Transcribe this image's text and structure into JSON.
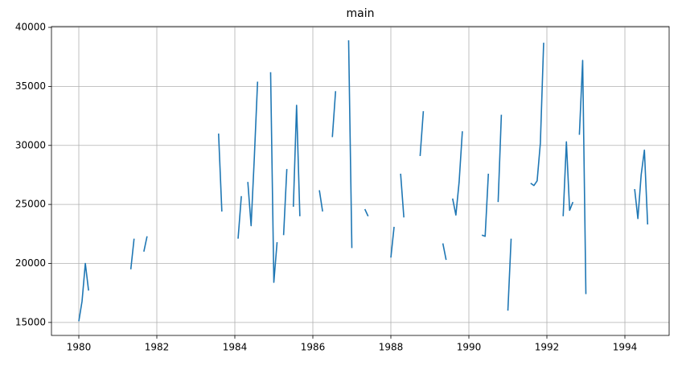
{
  "chart_data": {
    "type": "line",
    "title": "main",
    "x": [
      1980,
      1980.083,
      1980.167,
      1980.25,
      1980.333,
      1981.333,
      1981.417,
      1981.5,
      1981.667,
      1981.75,
      1981.833,
      1983.583,
      1983.667,
      1983.75,
      1984.083,
      1984.167,
      1984.25,
      1984.333,
      1984.417,
      1984.5,
      1984.583,
      1984.667,
      1984.917,
      1985,
      1985.083,
      1985.167,
      1985.25,
      1985.333,
      1985.417,
      1985.5,
      1985.583,
      1985.667,
      1985.75,
      1986.167,
      1986.25,
      1986.333,
      1986.5,
      1986.583,
      1986.667,
      1986.917,
      1987,
      1987.083,
      1987.333,
      1987.417,
      1987.5,
      1988,
      1988.083,
      1988.167,
      1988.25,
      1988.333,
      1988.417,
      1988.75,
      1988.833,
      1988.917,
      1989.333,
      1989.417,
      1989.5,
      1989.583,
      1989.667,
      1989.75,
      1989.833,
      1989.917,
      1990.333,
      1990.417,
      1990.5,
      1990.583,
      1990.75,
      1990.833,
      1990.917,
      1991,
      1991.083,
      1991.167,
      1991.583,
      1991.667,
      1991.75,
      1991.833,
      1991.917,
      1992,
      1992.417,
      1992.5,
      1992.583,
      1992.667,
      1992.75,
      1992.833,
      1992.917,
      1993,
      1993.083,
      1994.25,
      1994.333,
      1994.417,
      1994.5,
      1994.583
    ],
    "series": [
      {
        "color": "#1f77b4",
        "values": [
          15100,
          16800,
          20000,
          17700,
          null,
          19500,
          22100,
          null,
          21000,
          22300,
          null,
          31000,
          24400,
          null,
          22100,
          25700,
          null,
          26900,
          23200,
          29000,
          35400,
          null,
          36200,
          18400,
          21800,
          null,
          22400,
          28000,
          null,
          24800,
          33400,
          24000,
          null,
          26200,
          24400,
          null,
          30700,
          34600,
          null,
          38900,
          21300,
          null,
          24600,
          24000,
          null,
          20500,
          23100,
          null,
          27600,
          23900,
          null,
          29100,
          32900,
          null,
          21700,
          20300,
          null,
          25500,
          24100,
          26900,
          31200,
          null,
          22400,
          22300,
          27600,
          null,
          25200,
          32600,
          null,
          16000,
          22100,
          null,
          26800,
          26600,
          27000,
          30200,
          38700,
          null,
          24000,
          30300,
          24500,
          25200,
          null,
          30900,
          37200,
          17400,
          null,
          26300,
          23800,
          27500,
          29600,
          23300
        ]
      }
    ],
    "xlim": [
      1979.299,
      1995.134
    ],
    "xticks": [
      1980,
      1982,
      1984,
      1986,
      1988,
      1990,
      1992,
      1994
    ],
    "ylim": [
      13900,
      40070
    ],
    "yticks": [
      15000,
      20000,
      25000,
      30000,
      35000,
      40000
    ],
    "grid": true
  }
}
